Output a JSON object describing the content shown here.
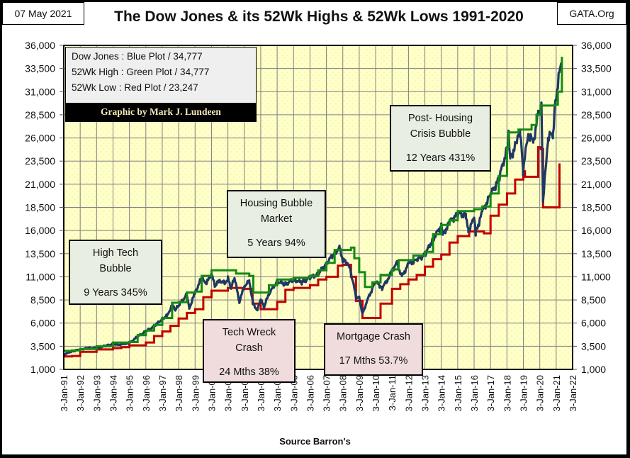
{
  "header": {
    "date": "07 May 2021",
    "site": "GATA.Org",
    "title": "The Dow Jones & its 52Wk Highs & 52Wk Lows 1991-2020"
  },
  "legend": {
    "rows": [
      "Dow Jones : Blue Plot   / 34,777",
      "52Wk High : Green Plot  / 34,777",
      "52Wk Low  : Red Plot / 23,247"
    ],
    "credit": "Graphic by Mark J. Lundeen"
  },
  "annotations": [
    {
      "id": "high-tech-bubble",
      "line1": "High Tech",
      "line2": "Bubble",
      "stat": "9 Years  345%",
      "style": "green"
    },
    {
      "id": "housing-bubble",
      "line1": "Housing Bubble",
      "line2": "Market",
      "stat": "5 Years  94%",
      "style": "green"
    },
    {
      "id": "post-housing",
      "line1": "Post- Housing",
      "line2": "Crisis Bubble",
      "stat": "12 Years  431%",
      "style": "green"
    },
    {
      "id": "tech-wreck",
      "line1": "Tech Wreck",
      "line2": "Crash",
      "stat": "24 Mths  38%",
      "style": "pink"
    },
    {
      "id": "mortgage-crash",
      "line1": "Mortgage  Crash",
      "line2": "",
      "stat": "17 Mths  53.7%",
      "style": "pink"
    }
  ],
  "source": "Source Barron's",
  "colors": {
    "plot_bg": "#ffffc8",
    "dow": "#1f3864",
    "high": "#138a13",
    "low": "#c00000",
    "grid": "#808080"
  },
  "chart_data": {
    "type": "line",
    "title": "The Dow Jones & its 52Wk Highs & 52Wk Lows 1991-2020",
    "xlabel": "Source Barron's",
    "ylabel": "",
    "ylim": [
      1000,
      36000
    ],
    "xlim": [
      1991,
      2022
    ],
    "grid": true,
    "legend_position": "top-left",
    "y_ticks": [
      "1,000",
      "3,500",
      "6,000",
      "8,500",
      "11,000",
      "13,500",
      "16,000",
      "18,500",
      "21,000",
      "23,500",
      "26,000",
      "28,500",
      "31,000",
      "33,500",
      "36,000"
    ],
    "y_tick_values": [
      1000,
      3500,
      6000,
      8500,
      11000,
      13500,
      16000,
      18500,
      21000,
      23500,
      26000,
      28500,
      31000,
      33500,
      36000
    ],
    "x_ticks": [
      "3-Jan-91",
      "3-Jan-92",
      "3-Jan-93",
      "3-Jan-94",
      "3-Jan-95",
      "3-Jan-96",
      "3-Jan-97",
      "3-Jan-98",
      "3-Jan-99",
      "3-Jan-00",
      "3-Jan-01",
      "3-Jan-02",
      "3-Jan-03",
      "3-Jan-04",
      "3-Jan-05",
      "3-Jan-06",
      "3-Jan-07",
      "3-Jan-08",
      "3-Jan-09",
      "3-Jan-10",
      "3-Jan-11",
      "3-Jan-12",
      "3-Jan-13",
      "3-Jan-14",
      "3-Jan-15",
      "3-Jan-16",
      "3-Jan-17",
      "3-Jan-18",
      "3-Jan-19",
      "3-Jan-20",
      "3-Jan-21",
      "3-Jan-22"
    ],
    "series": [
      {
        "name": "Dow Jones (Blue Plot)",
        "color": "#1f3864",
        "points": [
          [
            1991.0,
            2600
          ],
          [
            1991.5,
            2950
          ],
          [
            1992.0,
            3150
          ],
          [
            1992.5,
            3300
          ],
          [
            1993.0,
            3300
          ],
          [
            1993.5,
            3520
          ],
          [
            1994.0,
            3750
          ],
          [
            1994.3,
            3650
          ],
          [
            1994.8,
            3800
          ],
          [
            1995.0,
            3840
          ],
          [
            1995.5,
            4550
          ],
          [
            1996.0,
            5100
          ],
          [
            1996.5,
            5650
          ],
          [
            1997.0,
            6450
          ],
          [
            1997.3,
            6800
          ],
          [
            1997.6,
            7950
          ],
          [
            1997.8,
            7450
          ],
          [
            1998.0,
            7900
          ],
          [
            1998.5,
            9100
          ],
          [
            1998.65,
            7600
          ],
          [
            1999.0,
            9300
          ],
          [
            1999.4,
            10900
          ],
          [
            1999.7,
            10300
          ],
          [
            2000.0,
            11400
          ],
          [
            2000.2,
            10000
          ],
          [
            2000.5,
            10600
          ],
          [
            2000.8,
            10300
          ],
          [
            2001.0,
            10800
          ],
          [
            2001.2,
            9800
          ],
          [
            2001.4,
            10900
          ],
          [
            2001.7,
            8300
          ],
          [
            2002.0,
            10000
          ],
          [
            2002.3,
            10500
          ],
          [
            2002.55,
            8000
          ],
          [
            2002.8,
            7400
          ],
          [
            2003.0,
            8600
          ],
          [
            2003.2,
            7700
          ],
          [
            2003.5,
            9200
          ],
          [
            2004.0,
            10500
          ],
          [
            2004.5,
            10200
          ],
          [
            2005.0,
            10700
          ],
          [
            2005.5,
            10400
          ],
          [
            2006.0,
            10900
          ],
          [
            2006.5,
            11300
          ],
          [
            2007.0,
            12450
          ],
          [
            2007.5,
            13600
          ],
          [
            2007.8,
            14100
          ],
          [
            2008.0,
            12800
          ],
          [
            2008.3,
            12500
          ],
          [
            2008.5,
            11400
          ],
          [
            2008.8,
            8900
          ],
          [
            2009.0,
            8700
          ],
          [
            2009.2,
            7000
          ],
          [
            2009.5,
            8500
          ],
          [
            2010.0,
            10500
          ],
          [
            2010.4,
            9800
          ],
          [
            2010.7,
            10600
          ],
          [
            2011.0,
            11700
          ],
          [
            2011.3,
            12500
          ],
          [
            2011.6,
            11000
          ],
          [
            2012.0,
            12400
          ],
          [
            2012.5,
            12800
          ],
          [
            2013.0,
            13400
          ],
          [
            2013.5,
            15100
          ],
          [
            2014.0,
            16500
          ],
          [
            2014.1,
            15500
          ],
          [
            2014.5,
            16900
          ],
          [
            2015.0,
            17800
          ],
          [
            2015.5,
            17700
          ],
          [
            2015.65,
            16000
          ],
          [
            2016.0,
            17300
          ],
          [
            2016.1,
            15800
          ],
          [
            2016.5,
            18000
          ],
          [
            2017.0,
            19900
          ],
          [
            2017.5,
            21500
          ],
          [
            2018.0,
            24800
          ],
          [
            2018.1,
            26500
          ],
          [
            2018.2,
            23800
          ],
          [
            2018.6,
            25500
          ],
          [
            2018.8,
            26800
          ],
          [
            2018.98,
            22500
          ],
          [
            2019.3,
            26500
          ],
          [
            2019.6,
            25500
          ],
          [
            2019.9,
            28500
          ],
          [
            2020.1,
            29300
          ],
          [
            2020.2,
            19000
          ],
          [
            2020.5,
            26000
          ],
          [
            2020.8,
            26500
          ],
          [
            2020.95,
            30000
          ],
          [
            2021.2,
            33000
          ],
          [
            2021.35,
            34777
          ]
        ]
      },
      {
        "name": "52Wk High (Green Plot)",
        "color": "#138a13",
        "points": [
          [
            1991.0,
            3000
          ],
          [
            1991.5,
            3050
          ],
          [
            1992.0,
            3200
          ],
          [
            1993.0,
            3500
          ],
          [
            1994.0,
            3900
          ],
          [
            1995.0,
            3950
          ],
          [
            1995.5,
            4700
          ],
          [
            1996.0,
            5200
          ],
          [
            1996.5,
            5800
          ],
          [
            1997.0,
            6550
          ],
          [
            1997.6,
            8200
          ],
          [
            1998.0,
            8250
          ],
          [
            1998.5,
            9300
          ],
          [
            1999.0,
            9400
          ],
          [
            1999.4,
            11100
          ],
          [
            2000.0,
            11700
          ],
          [
            2001.0,
            11700
          ],
          [
            2001.5,
            11350
          ],
          [
            2002.3,
            11100
          ],
          [
            2002.55,
            9300
          ],
          [
            2003.5,
            10100
          ],
          [
            2004.0,
            10700
          ],
          [
            2005.0,
            10900
          ],
          [
            2006.0,
            11100
          ],
          [
            2006.5,
            11700
          ],
          [
            2007.0,
            12500
          ],
          [
            2007.5,
            13900
          ],
          [
            2008.5,
            14150
          ],
          [
            2008.7,
            13000
          ],
          [
            2009.0,
            11500
          ],
          [
            2009.35,
            9900
          ],
          [
            2009.8,
            10400
          ],
          [
            2010.3,
            11200
          ],
          [
            2011.0,
            11800
          ],
          [
            2011.4,
            12800
          ],
          [
            2012.3,
            13300
          ],
          [
            2013.0,
            13700
          ],
          [
            2013.5,
            15600
          ],
          [
            2014.0,
            16600
          ],
          [
            2014.5,
            17100
          ],
          [
            2015.0,
            18100
          ],
          [
            2016.0,
            18300
          ],
          [
            2016.5,
            18600
          ],
          [
            2017.0,
            20000
          ],
          [
            2017.5,
            21900
          ],
          [
            2018.0,
            25000
          ],
          [
            2018.1,
            26600
          ],
          [
            2018.7,
            26900
          ],
          [
            2019.5,
            27400
          ],
          [
            2019.8,
            28500
          ],
          [
            2020.05,
            29500
          ],
          [
            2020.9,
            29600
          ],
          [
            2021.1,
            31000
          ],
          [
            2021.35,
            34777
          ]
        ]
      },
      {
        "name": "52Wk Low (Red Plot)",
        "color": "#c00000",
        "points": [
          [
            1991.0,
            2400
          ],
          [
            1991.5,
            2450
          ],
          [
            1992.0,
            2900
          ],
          [
            1993.0,
            3150
          ],
          [
            1994.0,
            3300
          ],
          [
            1994.5,
            3400
          ],
          [
            1995.0,
            3600
          ],
          [
            1996.0,
            3900
          ],
          [
            1996.5,
            4600
          ],
          [
            1997.0,
            5100
          ],
          [
            1997.5,
            5700
          ],
          [
            1998.0,
            6500
          ],
          [
            1998.5,
            7100
          ],
          [
            1999.0,
            7500
          ],
          [
            1999.5,
            8800
          ],
          [
            2000.0,
            9500
          ],
          [
            2001.0,
            9800
          ],
          [
            2002.0,
            9700
          ],
          [
            2002.5,
            8100
          ],
          [
            2003.0,
            7500
          ],
          [
            2004.0,
            8300
          ],
          [
            2004.5,
            9600
          ],
          [
            2005.0,
            9800
          ],
          [
            2006.0,
            10100
          ],
          [
            2006.5,
            10700
          ],
          [
            2007.0,
            11000
          ],
          [
            2007.7,
            12200
          ],
          [
            2008.0,
            12300
          ],
          [
            2008.5,
            11000
          ],
          [
            2008.8,
            8400
          ],
          [
            2009.2,
            6550
          ],
          [
            2010.0,
            6550
          ],
          [
            2010.3,
            8100
          ],
          [
            2011.0,
            9700
          ],
          [
            2011.5,
            10200
          ],
          [
            2012.0,
            10700
          ],
          [
            2012.5,
            11200
          ],
          [
            2013.0,
            12100
          ],
          [
            2013.5,
            12900
          ],
          [
            2014.0,
            13400
          ],
          [
            2014.5,
            14700
          ],
          [
            2015.0,
            15400
          ],
          [
            2015.7,
            15900
          ],
          [
            2016.6,
            15700
          ],
          [
            2017.0,
            17600
          ],
          [
            2017.5,
            18800
          ],
          [
            2018.0,
            20000
          ],
          [
            2018.5,
            21500
          ],
          [
            2019.0,
            22400
          ],
          [
            2019.1,
            21800
          ],
          [
            2019.6,
            21800
          ],
          [
            2019.9,
            25000
          ],
          [
            2020.05,
            24800
          ],
          [
            2020.2,
            18500
          ],
          [
            2021.1,
            18500
          ],
          [
            2021.2,
            23247
          ]
        ]
      }
    ]
  }
}
